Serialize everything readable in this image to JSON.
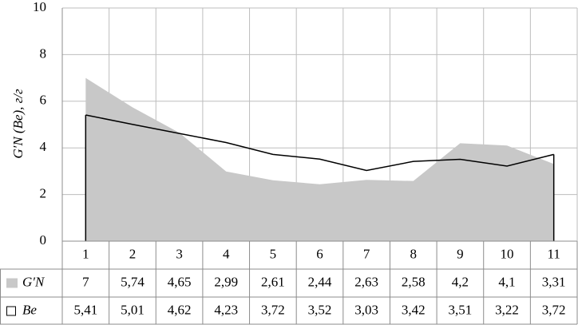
{
  "chart_data": {
    "type": "area-line",
    "y_label": "G′N (Be), г/г",
    "categories": [
      "1",
      "2",
      "3",
      "4",
      "5",
      "6",
      "7",
      "8",
      "9",
      "10",
      "11"
    ],
    "series": [
      {
        "name": "G′N",
        "type": "area",
        "color": "#c8c8c8",
        "values": [
          7,
          5.74,
          4.65,
          2.99,
          2.61,
          2.44,
          2.63,
          2.58,
          4.2,
          4.1,
          3.31
        ],
        "value_labels": [
          "7",
          "5,74",
          "4,65",
          "2,99",
          "2,61",
          "2,44",
          "2,63",
          "2,58",
          "4,2",
          "4,1",
          "3,31"
        ]
      },
      {
        "name": "Be",
        "type": "line",
        "color": "#000000",
        "values": [
          5.41,
          5.01,
          4.62,
          4.23,
          3.72,
          3.52,
          3.03,
          3.42,
          3.51,
          3.22,
          3.72
        ],
        "value_labels": [
          "5,41",
          "5,01",
          "4,62",
          "4,23",
          "3,72",
          "3,52",
          "3,03",
          "3,42",
          "3,51",
          "3,22",
          "3,72"
        ]
      }
    ],
    "ylim": [
      0,
      10
    ],
    "yticks": [
      0,
      2,
      4,
      6,
      8,
      10
    ],
    "grid": true
  }
}
